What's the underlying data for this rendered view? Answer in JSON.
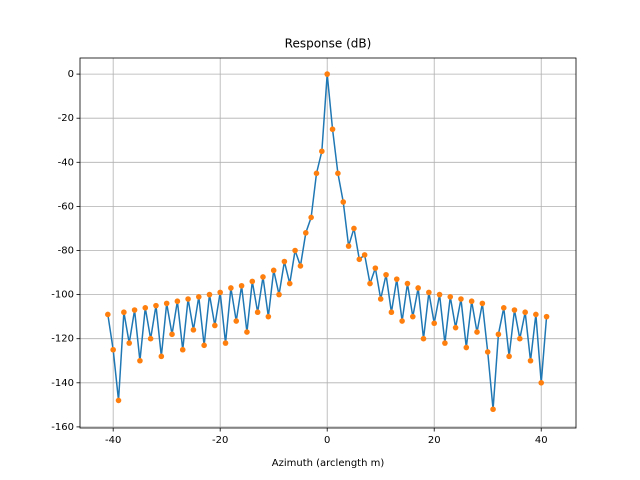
{
  "chart_data": {
    "type": "line",
    "title": "Response (dB)",
    "x_label": "Azimuth (arclength m)",
    "x": [
      -41,
      -40,
      -39,
      -38,
      -37,
      -36,
      -35,
      -34,
      -33,
      -32,
      -31,
      -30,
      -29,
      -28,
      -27,
      -26,
      -25,
      -24,
      -23,
      -22,
      -21,
      -20,
      -19,
      -18,
      -17,
      -16,
      -15,
      -14,
      -13,
      -12,
      -11,
      -10,
      -9,
      -8,
      -7,
      -6,
      -5,
      -4,
      -3,
      -2,
      -1,
      0,
      1,
      2,
      3,
      4,
      5,
      6,
      7,
      8,
      9,
      10,
      11,
      12,
      13,
      14,
      15,
      16,
      17,
      18,
      19,
      20,
      21,
      22,
      23,
      24,
      25,
      26,
      27,
      28,
      29,
      30,
      31,
      32,
      33,
      34,
      35,
      36,
      37,
      38,
      39,
      40,
      41
    ],
    "series": [
      {
        "color": "#1f77b4",
        "marker_color": "#ff7f0e",
        "values": [
          -109,
          -125,
          -148,
          -108,
          -122,
          -107,
          -130,
          -106,
          -120,
          -105,
          -128,
          -104,
          -118,
          -103,
          -125,
          -102,
          -116,
          -101,
          -123,
          -100,
          -114,
          -99,
          -122,
          -97,
          -112,
          -96,
          -117,
          -94,
          -108,
          -92,
          -110,
          -89,
          -100,
          -85,
          -95,
          -80,
          -87,
          -72,
          -65,
          -45,
          -35,
          0,
          -25,
          -45,
          -58,
          -78,
          -70,
          -84,
          -82,
          -95,
          -88,
          -102,
          -91,
          -108,
          -93,
          -112,
          -95,
          -110,
          -97,
          -120,
          -99,
          -113,
          -100,
          -122,
          -101,
          -115,
          -102,
          -124,
          -103,
          -117,
          -104,
          -126,
          -152,
          -118,
          -106,
          -128,
          -107,
          -120,
          -108,
          -130,
          -109,
          -140,
          -110
        ]
      }
    ],
    "xlim": [
      -46.2,
      46.5
    ],
    "ylim": [
      -160.5,
      7.3
    ],
    "xticks": [
      -40,
      -20,
      0,
      20,
      40
    ],
    "yticks": [
      -160,
      -140,
      -120,
      -100,
      -80,
      -60,
      -40,
      -20,
      0
    ],
    "grid": true
  }
}
